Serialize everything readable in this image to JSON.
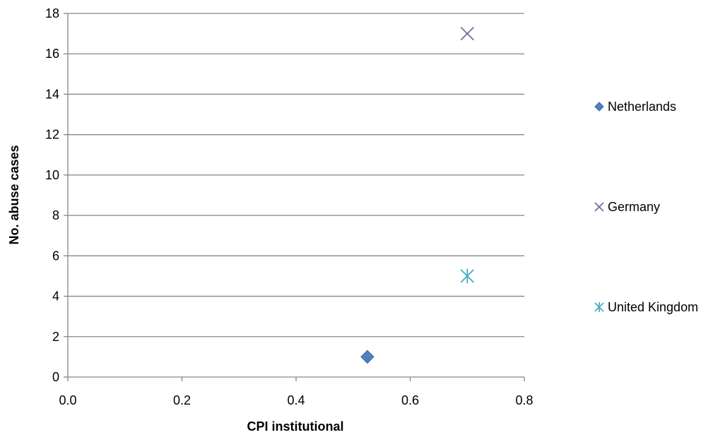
{
  "chart_data": {
    "type": "scatter",
    "title": "",
    "xlabel": "CPI institutional",
    "ylabel": "No. abuse cases",
    "xlim": [
      0.0,
      0.8
    ],
    "ylim": [
      0,
      18
    ],
    "xticks": [
      "0.0",
      "0.2",
      "0.4",
      "0.6",
      "0.8"
    ],
    "yticks": [
      "0",
      "2",
      "4",
      "6",
      "8",
      "10",
      "12",
      "14",
      "16",
      "18"
    ],
    "grid": "horizontal",
    "legend_position": "right",
    "series": [
      {
        "name": "Netherlands",
        "marker": "diamond",
        "color": "#4F81BD",
        "x": 0.525,
        "y": 1
      },
      {
        "name": "Germany",
        "marker": "x",
        "color": "#8064A2",
        "x": 0.7,
        "y": 17
      },
      {
        "name": "United Kingdom",
        "marker": "asterisk",
        "color": "#4BACC6",
        "x": 0.7,
        "y": 5
      }
    ]
  }
}
